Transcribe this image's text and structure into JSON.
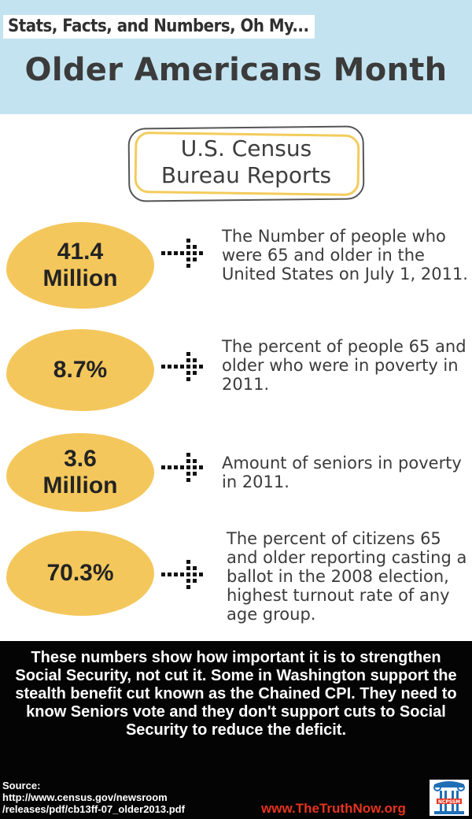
{
  "header": {
    "tagline": "Stats, Facts, and Numbers, Oh My...",
    "title": "Older Americans Month"
  },
  "census_box": {
    "line1": "U.S. Census",
    "line2": "Bureau Reports"
  },
  "stats": [
    {
      "value_line1": "41.4",
      "value_line2": "Million",
      "description": "The Number of people who were 65 and older in the United States on July 1, 2011."
    },
    {
      "value_line1": "8.7%",
      "value_line2": "",
      "description": "The percent of people 65 and older who were in poverty in 2011."
    },
    {
      "value_line1": "3.6",
      "value_line2": "Million",
      "description": "Amount of seniors in poverty in 2011."
    },
    {
      "value_line1": "70.3%",
      "value_line2": "",
      "description": "The percent of citizens 65 and older reporting casting a ballot in the 2008 election, highest turnout rate of any age group."
    }
  ],
  "footer": {
    "message": "These numbers show how important it is to strengthen Social Security, not cut it. Some in Washington support the stealth benefit cut known as the Chained CPI. They need to know Seniors vote and they don't support cuts to Social Security to reduce the deficit.",
    "source_label": "Source:",
    "source_line1": "http://www.census.gov/newsroom",
    "source_line2": "/releases/pdf/cb13ff-07_older2013.pdf",
    "website": "www.TheTruthNow.org",
    "logo_text": "NCPSSM"
  },
  "colors": {
    "header_bg": "#c3e3f0",
    "blob": "#f4c75c",
    "footer_bg": "#040404",
    "website": "#e7331f",
    "logo_blue": "#1f6fb6"
  }
}
